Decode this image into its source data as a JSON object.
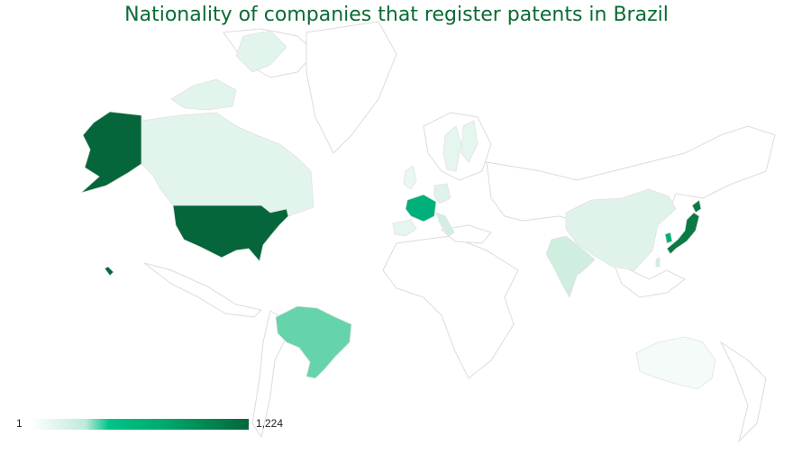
{
  "title": "Nationality of companies that register patents in Brazil",
  "legend": {
    "min_label": "1",
    "max_label": "1,224",
    "min_value": 1,
    "max_value": 1224,
    "colors": [
      "#ffffff",
      "#bfead9",
      "#00c389",
      "#00a86b",
      "#04663a"
    ]
  },
  "countries": [
    {
      "name": "United States",
      "level": 1.0,
      "color": "#04663a"
    },
    {
      "name": "Japan",
      "level": 0.9,
      "color": "#0a7a44"
    },
    {
      "name": "France",
      "level": 0.5,
      "color": "#00b07a"
    },
    {
      "name": "Brazil",
      "level": 0.35,
      "color": "#66d4aa"
    },
    {
      "name": "Canada",
      "level": 0.05,
      "color": "#e1f5ec"
    },
    {
      "name": "China",
      "level": 0.05,
      "color": "#dff3ea"
    },
    {
      "name": "India",
      "level": 0.08,
      "color": "#cfeedf"
    },
    {
      "name": "Australia",
      "level": 0.02,
      "color": "#f4fbf8"
    },
    {
      "name": "Germany",
      "level": 0.06,
      "color": "#dff3ea"
    },
    {
      "name": "Italy",
      "level": 0.08,
      "color": "#d2efe2"
    },
    {
      "name": "Sweden",
      "level": 0.06,
      "color": "#e5f6ef"
    },
    {
      "name": "Finland",
      "level": 0.06,
      "color": "#e5f6ef"
    },
    {
      "name": "Spain",
      "level": 0.05,
      "color": "#e5f6ef"
    },
    {
      "name": "United Kingdom",
      "level": 0.04,
      "color": "#eaf8f2"
    },
    {
      "name": "Taiwan",
      "level": 0.07,
      "color": "#cfeedf"
    },
    {
      "name": "South Korea",
      "level": 0.2,
      "color": "#00b07a"
    }
  ]
}
